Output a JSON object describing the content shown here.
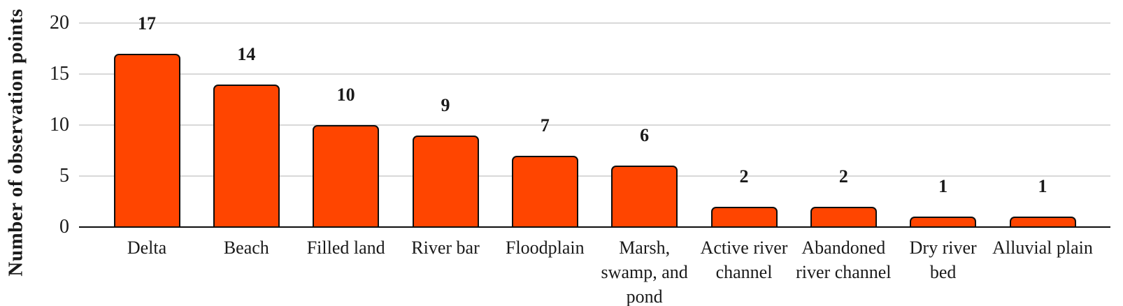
{
  "chart_data": {
    "type": "bar",
    "title": "",
    "ylabel": "Number of observation points",
    "xlabel": "",
    "categories": [
      "Delta",
      "Beach",
      "Filled land",
      "River bar",
      "Floodplain",
      "Marsh,\nswamp, and\npond",
      "Active river\nchannel",
      "Abandoned\nriver channel",
      "Dry river\nbed",
      "Alluvial plain"
    ],
    "values": [
      17,
      14,
      10,
      9,
      7,
      6,
      2,
      2,
      1,
      1
    ],
    "ylim": [
      0,
      20
    ],
    "yticks": [
      0,
      5,
      10,
      15,
      20
    ],
    "grid": true,
    "legend_position": "none",
    "data_labels_shown": true,
    "colors": {
      "bar_fill": "#FF4500",
      "bar_border": "#0D0D0D",
      "gridline": "#D9D9D9",
      "axis_line": "#0D0D0D",
      "text": "#1A1A1A",
      "background": "#FFFFFF"
    }
  }
}
